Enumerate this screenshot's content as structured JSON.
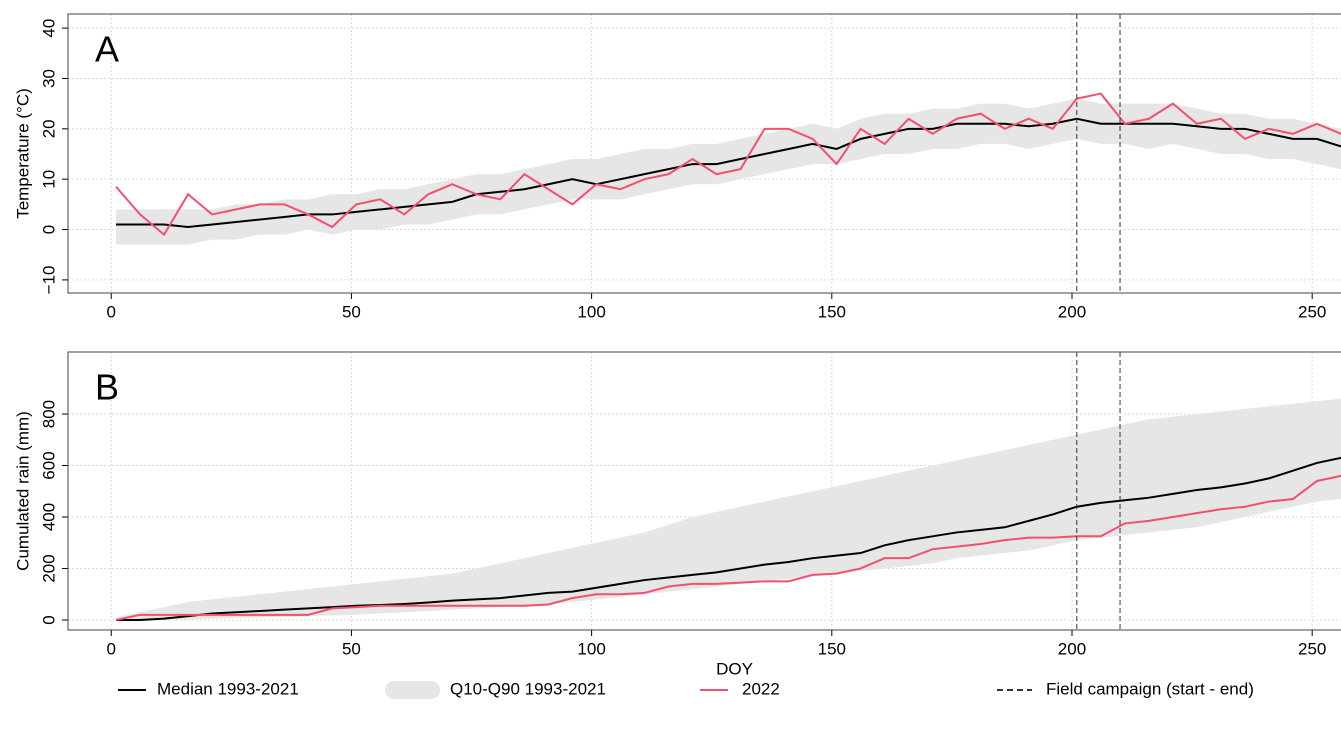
{
  "chart_data": [
    {
      "type": "line",
      "panel": "A",
      "ylabel": "Temperature (°C)",
      "x": [
        1,
        6,
        11,
        16,
        21,
        26,
        31,
        36,
        41,
        46,
        51,
        56,
        61,
        66,
        71,
        76,
        81,
        86,
        91,
        96,
        101,
        106,
        111,
        116,
        121,
        126,
        131,
        136,
        141,
        146,
        151,
        156,
        161,
        166,
        171,
        176,
        181,
        186,
        191,
        196,
        201,
        206,
        211,
        216,
        221,
        226,
        231,
        236,
        241,
        246,
        251,
        256
      ],
      "xlim": [
        -9,
        256
      ],
      "xticks": [
        0,
        50,
        100,
        150,
        200,
        250
      ],
      "ylim": [
        -12.6,
        42.8
      ],
      "yticks": [
        {
          "value": -10,
          "label": "−10"
        },
        0,
        10,
        20,
        30,
        40
      ],
      "grid": true,
      "series": [
        {
          "name": "Median 1993-2021",
          "color": "#000000",
          "values": [
            1,
            1,
            1,
            0.5,
            1,
            1.5,
            2,
            2.5,
            3,
            3,
            3.5,
            4,
            4.5,
            5,
            5.5,
            7,
            7.5,
            8,
            9,
            10,
            9,
            10,
            11,
            12,
            13,
            13,
            14,
            15,
            16,
            17,
            16,
            18,
            19,
            20,
            20,
            21,
            21,
            21,
            20.5,
            21,
            22,
            21,
            21,
            21,
            21,
            20.5,
            20,
            20,
            19,
            18,
            18,
            16.5
          ]
        },
        {
          "name": "Q10-Q90 1993-2021",
          "color": "#e6e6e6",
          "low": [
            -3,
            -3,
            -3,
            -3,
            -2,
            -2,
            -1,
            -1,
            0,
            -1,
            0,
            0,
            1,
            1,
            2,
            3,
            3,
            4,
            5,
            6,
            6,
            6,
            7,
            8,
            9,
            9,
            10,
            11,
            12,
            13,
            13,
            14,
            15,
            15,
            16,
            16,
            17,
            17,
            16,
            17,
            18,
            17,
            17,
            16,
            17,
            16,
            15,
            15,
            14,
            14,
            13,
            12
          ],
          "high": [
            4,
            4,
            4,
            4,
            4,
            5,
            5,
            6,
            6,
            7,
            7,
            8,
            8,
            9,
            10,
            11,
            11,
            12,
            13,
            14,
            14,
            15,
            16,
            16,
            17,
            17,
            18,
            19,
            20,
            21,
            20,
            22,
            23,
            23,
            24,
            24,
            25,
            25,
            24,
            25,
            26,
            25,
            25,
            25,
            25,
            24,
            23,
            23,
            22,
            22,
            21,
            20
          ]
        },
        {
          "name": "2022",
          "color": "#f2506e",
          "values": [
            8.5,
            3,
            -1,
            7,
            3,
            4,
            5,
            5,
            3,
            0.5,
            5,
            6,
            3,
            7,
            9,
            7,
            6,
            11,
            8,
            5,
            9,
            8,
            10,
            11,
            14,
            11,
            12,
            20,
            20,
            18,
            13,
            20,
            17,
            22,
            19,
            22,
            23,
            20,
            22,
            20,
            26,
            27,
            21,
            22,
            25,
            21,
            22,
            18,
            20,
            19,
            21,
            19
          ]
        }
      ],
      "campaign": {
        "name": "Field campaign (start - end)",
        "x": [
          201,
          210
        ],
        "color": "#333333"
      }
    },
    {
      "type": "line",
      "panel": "B",
      "ylabel": "Cumulated rain (mm)",
      "xlabel": "DOY",
      "x": [
        1,
        6,
        11,
        16,
        21,
        26,
        31,
        36,
        41,
        46,
        51,
        56,
        61,
        66,
        71,
        76,
        81,
        86,
        91,
        96,
        101,
        106,
        111,
        116,
        121,
        126,
        131,
        136,
        141,
        146,
        151,
        156,
        161,
        166,
        171,
        176,
        181,
        186,
        191,
        196,
        201,
        206,
        211,
        216,
        221,
        226,
        231,
        236,
        241,
        246,
        251,
        256
      ],
      "xlim": [
        -9,
        256
      ],
      "xticks": [
        0,
        50,
        100,
        150,
        200,
        250
      ],
      "ylim": [
        -39,
        1041
      ],
      "yticks": [
        0,
        200,
        400,
        600,
        800
      ],
      "grid": true,
      "series": [
        {
          "name": "Median 1993-2021",
          "color": "#000000",
          "values": [
            0,
            0,
            5,
            15,
            25,
            30,
            35,
            40,
            45,
            50,
            55,
            58,
            62,
            68,
            75,
            80,
            85,
            95,
            105,
            110,
            125,
            140,
            155,
            165,
            175,
            185,
            200,
            215,
            225,
            240,
            250,
            260,
            290,
            310,
            325,
            340,
            350,
            360,
            385,
            410,
            440,
            455,
            465,
            475,
            490,
            505,
            515,
            530,
            550,
            580,
            610,
            630
          ]
        },
        {
          "name": "Q10-Q90 1993-2021",
          "color": "#e6e6e6",
          "low": [
            0,
            0,
            0,
            2,
            5,
            8,
            10,
            12,
            15,
            18,
            20,
            25,
            30,
            35,
            40,
            45,
            50,
            55,
            60,
            70,
            80,
            90,
            100,
            110,
            120,
            130,
            140,
            150,
            160,
            170,
            180,
            190,
            200,
            210,
            220,
            240,
            250,
            260,
            270,
            290,
            310,
            320,
            330,
            340,
            350,
            360,
            380,
            400,
            420,
            440,
            460,
            470
          ],
          "high": [
            10,
            30,
            50,
            70,
            80,
            90,
            100,
            110,
            120,
            130,
            140,
            150,
            160,
            170,
            180,
            200,
            220,
            240,
            260,
            280,
            300,
            320,
            340,
            370,
            400,
            420,
            440,
            460,
            480,
            500,
            520,
            540,
            560,
            580,
            600,
            620,
            640,
            660,
            680,
            700,
            720,
            740,
            760,
            780,
            790,
            800,
            810,
            820,
            830,
            840,
            850,
            860
          ]
        },
        {
          "name": "2022",
          "color": "#f2506e",
          "values": [
            0,
            20,
            20,
            20,
            20,
            20,
            20,
            20,
            20,
            45,
            50,
            55,
            55,
            55,
            55,
            55,
            55,
            55,
            60,
            85,
            100,
            100,
            105,
            130,
            140,
            140,
            145,
            150,
            150,
            175,
            180,
            200,
            240,
            240,
            275,
            285,
            295,
            310,
            320,
            320,
            325,
            325,
            375,
            385,
            400,
            415,
            430,
            440,
            460,
            470,
            540,
            560
          ]
        }
      ],
      "campaign": {
        "name": "Field campaign (start - end)",
        "x": [
          201,
          210
        ],
        "color": "#333333"
      }
    }
  ]
}
